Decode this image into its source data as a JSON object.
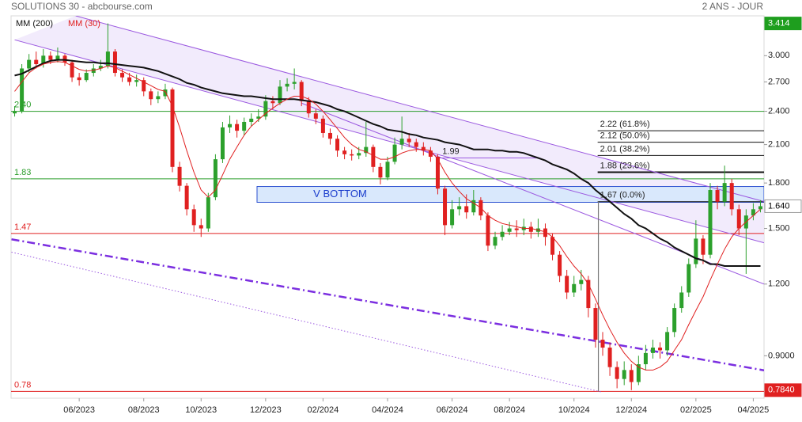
{
  "chart_data": {
    "type": "candlestick",
    "title": "SOLUTIONS 30 - abcbourse.com",
    "period": "2 ANS - JOUR",
    "log_scale": true,
    "ylim": [
      0.759,
      3.52
    ],
    "yticks": [
      {
        "value": 3.0,
        "label": "3.000"
      },
      {
        "value": 2.7,
        "label": "2.700"
      },
      {
        "value": 2.4,
        "label": "2.400"
      },
      {
        "value": 2.1,
        "label": "2.100"
      },
      {
        "value": 1.8,
        "label": "1.800"
      },
      {
        "value": 1.5,
        "label": "1.500"
      },
      {
        "value": 1.2,
        "label": "1.200"
      },
      {
        "value": 0.9,
        "label": "0.9000"
      }
    ],
    "categories": [
      null,
      null,
      null,
      null,
      null,
      null,
      null,
      null,
      null,
      "06/2023",
      null,
      null,
      null,
      null,
      null,
      null,
      null,
      null,
      "08/2023",
      null,
      null,
      null,
      null,
      null,
      null,
      null,
      "10/2023",
      null,
      null,
      null,
      null,
      null,
      null,
      null,
      null,
      "12/2023",
      null,
      null,
      null,
      null,
      null,
      null,
      null,
      "02/2024",
      null,
      null,
      null,
      null,
      null,
      null,
      null,
      null,
      "04/2024",
      null,
      null,
      null,
      null,
      null,
      null,
      null,
      null,
      "06/2024",
      null,
      null,
      null,
      null,
      null,
      null,
      null,
      "08/2024",
      null,
      null,
      null,
      null,
      null,
      null,
      null,
      null,
      "10/2024",
      null,
      null,
      null,
      null,
      null,
      null,
      null,
      "12/2024",
      null,
      null,
      null,
      null,
      null,
      null,
      null,
      null,
      "02/2025",
      null,
      null,
      null,
      null,
      null,
      null,
      null,
      "04/2025",
      null
    ],
    "candles": {
      "up_color": "#2ca02c",
      "down_color": "#e02020",
      "open": [
        2.38,
        2.4,
        2.85,
        2.95,
        2.9,
        3.0,
        2.95,
        3.0,
        2.92,
        2.75,
        2.72,
        2.8,
        2.85,
        2.88,
        3.05,
        2.8,
        2.75,
        2.7,
        2.72,
        2.6,
        2.52,
        2.55,
        2.62,
        1.92,
        1.78,
        1.62,
        1.52,
        1.5,
        1.7,
        1.98,
        2.25,
        2.28,
        2.22,
        2.3,
        2.33,
        2.35,
        2.5,
        2.48,
        2.65,
        2.68,
        2.7,
        2.5,
        2.38,
        2.33,
        2.2,
        2.15,
        2.05,
        2.02,
        2.01,
        2.03,
        2.08,
        1.92,
        1.84,
        1.96,
        2.1,
        2.15,
        2.12,
        2.08,
        2.05,
        2.0,
        1.76,
        1.52,
        1.62,
        1.64,
        1.6,
        1.68,
        1.58,
        1.4,
        1.45,
        1.48,
        1.5,
        1.49,
        1.51,
        1.48,
        1.5,
        1.45,
        1.35,
        1.24,
        1.16,
        1.2,
        1.22,
        1.09,
        0.96,
        0.93,
        0.86,
        0.82,
        0.85,
        0.81,
        0.87,
        0.91,
        0.93,
        0.92,
        0.99,
        1.09,
        1.16,
        1.3,
        1.44,
        1.35,
        1.75,
        1.67,
        1.8,
        1.62,
        1.5,
        1.58,
        1.62
      ],
      "high": [
        2.45,
        2.9,
        3.02,
        3.05,
        3.08,
        3.05,
        3.1,
        3.02,
        2.95,
        2.8,
        2.84,
        2.9,
        2.95,
        3.414,
        3.08,
        2.84,
        2.8,
        2.78,
        2.75,
        2.63,
        2.6,
        2.68,
        2.64,
        1.96,
        1.8,
        1.65,
        1.56,
        1.73,
        2.02,
        2.3,
        2.36,
        2.32,
        2.34,
        2.38,
        2.42,
        2.56,
        2.55,
        2.72,
        2.74,
        2.85,
        2.72,
        2.54,
        2.42,
        2.36,
        2.24,
        2.18,
        2.08,
        2.06,
        2.08,
        2.3,
        2.1,
        1.95,
        2.0,
        2.16,
        2.35,
        2.2,
        2.15,
        2.12,
        2.08,
        2.02,
        1.78,
        1.68,
        1.7,
        1.72,
        1.75,
        1.7,
        1.6,
        1.48,
        1.52,
        1.54,
        1.55,
        1.56,
        1.54,
        1.56,
        1.53,
        1.47,
        1.37,
        1.27,
        1.24,
        1.27,
        1.24,
        1.11,
        0.99,
        0.95,
        0.88,
        0.88,
        0.87,
        0.9,
        0.94,
        0.96,
        0.95,
        1.01,
        1.11,
        1.19,
        1.33,
        1.55,
        1.46,
        1.8,
        1.78,
        1.93,
        1.83,
        1.65,
        1.62,
        1.66,
        1.68
      ],
      "low": [
        2.35,
        2.38,
        2.8,
        2.85,
        2.86,
        2.9,
        2.92,
        2.88,
        2.7,
        2.66,
        2.7,
        2.76,
        2.82,
        2.85,
        2.76,
        2.7,
        2.66,
        2.65,
        2.55,
        2.46,
        2.48,
        2.52,
        1.88,
        1.74,
        1.58,
        1.48,
        1.45,
        1.48,
        1.68,
        1.95,
        2.2,
        2.16,
        2.18,
        2.26,
        2.3,
        2.32,
        2.42,
        2.46,
        2.6,
        2.62,
        2.45,
        2.34,
        2.28,
        2.16,
        2.1,
        2.0,
        1.98,
        1.97,
        1.98,
        2.0,
        1.88,
        1.79,
        1.82,
        1.94,
        2.06,
        2.08,
        2.04,
        2.01,
        1.96,
        1.72,
        1.46,
        1.5,
        1.58,
        1.56,
        1.58,
        1.55,
        1.37,
        1.38,
        1.43,
        1.46,
        1.45,
        1.46,
        1.44,
        1.45,
        1.4,
        1.32,
        1.21,
        1.13,
        1.14,
        1.17,
        1.05,
        0.93,
        0.9,
        0.83,
        0.79,
        0.8,
        0.784,
        0.8,
        0.85,
        0.89,
        0.89,
        0.9,
        0.97,
        1.07,
        1.14,
        1.28,
        1.3,
        1.33,
        1.62,
        1.64,
        1.58,
        1.46,
        1.25,
        1.55,
        1.6
      ],
      "close": [
        2.4,
        2.85,
        2.95,
        2.9,
        3.0,
        2.95,
        3.0,
        2.92,
        2.75,
        2.72,
        2.8,
        2.85,
        2.88,
        3.05,
        2.8,
        2.75,
        2.7,
        2.72,
        2.6,
        2.52,
        2.55,
        2.62,
        1.92,
        1.78,
        1.62,
        1.52,
        1.5,
        1.7,
        1.98,
        2.25,
        2.28,
        2.22,
        2.3,
        2.33,
        2.35,
        2.5,
        2.48,
        2.65,
        2.68,
        2.7,
        2.5,
        2.38,
        2.33,
        2.2,
        2.15,
        2.05,
        2.02,
        2.01,
        2.03,
        2.08,
        1.92,
        1.84,
        1.96,
        2.1,
        2.15,
        2.12,
        2.08,
        2.05,
        2.0,
        1.76,
        1.52,
        1.62,
        1.64,
        1.6,
        1.68,
        1.58,
        1.4,
        1.45,
        1.48,
        1.5,
        1.49,
        1.51,
        1.48,
        1.5,
        1.45,
        1.35,
        1.24,
        1.16,
        1.2,
        1.22,
        1.09,
        0.96,
        0.93,
        0.86,
        0.82,
        0.85,
        0.81,
        0.87,
        0.91,
        0.93,
        0.92,
        0.99,
        1.09,
        1.16,
        1.3,
        1.44,
        1.35,
        1.75,
        1.67,
        1.8,
        1.62,
        1.5,
        1.58,
        1.62,
        1.64
      ]
    },
    "series": [
      {
        "name": "MM (200)",
        "color": "#111111",
        "width": 2,
        "values": [
          2.77,
          2.79,
          2.83,
          2.87,
          2.91,
          2.94,
          2.95,
          2.95,
          2.94,
          2.93,
          2.92,
          2.92,
          2.91,
          2.91,
          2.9,
          2.89,
          2.88,
          2.87,
          2.86,
          2.84,
          2.82,
          2.79,
          2.76,
          2.73,
          2.69,
          2.67,
          2.64,
          2.62,
          2.6,
          2.58,
          2.57,
          2.56,
          2.55,
          2.55,
          2.54,
          2.53,
          2.52,
          2.52,
          2.52,
          2.52,
          2.51,
          2.5,
          2.49,
          2.47,
          2.45,
          2.42,
          2.4,
          2.37,
          2.34,
          2.31,
          2.28,
          2.26,
          2.23,
          2.22,
          2.21,
          2.19,
          2.18,
          2.16,
          2.15,
          2.14,
          2.12,
          2.11,
          2.1,
          2.08,
          2.06,
          2.06,
          2.06,
          2.05,
          2.05,
          2.04,
          2.04,
          2.03,
          2.01,
          1.99,
          1.97,
          1.94,
          1.92,
          1.9,
          1.87,
          1.83,
          1.8,
          1.75,
          1.71,
          1.67,
          1.63,
          1.59,
          1.56,
          1.52,
          1.5,
          1.47,
          1.44,
          1.42,
          1.39,
          1.37,
          1.35,
          1.33,
          1.32,
          1.3,
          1.3,
          1.29,
          1.29,
          1.29,
          1.29,
          1.29,
          1.29
        ]
      },
      {
        "name": "MM (30)",
        "color": "#e02020",
        "width": 1,
        "values": [
          2.6,
          2.7,
          2.8,
          2.86,
          2.9,
          2.92,
          2.93,
          2.92,
          2.88,
          2.84,
          2.82,
          2.83,
          2.85,
          2.88,
          2.86,
          2.82,
          2.78,
          2.74,
          2.7,
          2.66,
          2.62,
          2.6,
          2.45,
          2.25,
          2.05,
          1.88,
          1.75,
          1.7,
          1.75,
          1.86,
          1.98,
          2.08,
          2.18,
          2.26,
          2.32,
          2.38,
          2.43,
          2.48,
          2.52,
          2.55,
          2.55,
          2.52,
          2.47,
          2.4,
          2.32,
          2.24,
          2.16,
          2.1,
          2.06,
          2.04,
          2.01,
          1.98,
          1.98,
          2.0,
          2.03,
          2.05,
          2.06,
          2.06,
          2.05,
          1.98,
          1.88,
          1.8,
          1.74,
          1.69,
          1.66,
          1.63,
          1.58,
          1.55,
          1.53,
          1.52,
          1.51,
          1.5,
          1.5,
          1.49,
          1.48,
          1.45,
          1.4,
          1.34,
          1.29,
          1.25,
          1.2,
          1.13,
          1.06,
          1.0,
          0.95,
          0.91,
          0.88,
          0.86,
          0.85,
          0.85,
          0.86,
          0.88,
          0.92,
          0.96,
          1.02,
          1.08,
          1.14,
          1.22,
          1.3,
          1.38,
          1.45,
          1.5,
          1.54,
          1.58,
          1.62
        ]
      }
    ],
    "hlines": [
      {
        "value": 2.4,
        "label": "2.40",
        "color": "#2a9d2a"
      },
      {
        "value": 1.83,
        "label": "1.83",
        "color": "#2a9d2a"
      },
      {
        "value": 1.47,
        "label": "1.47",
        "color": "#e02020"
      },
      {
        "value": 0.78,
        "label": "0.78",
        "color": "#e02020"
      }
    ],
    "fibonacci": {
      "x": [
        81.3,
        104.5
      ],
      "levels": [
        {
          "value": 2.22,
          "label": "2.22  (61.8%)",
          "width": 1
        },
        {
          "value": 2.12,
          "label": "2.12  (50.0%)",
          "width": 1
        },
        {
          "value": 2.01,
          "label": "2.01  (38.2%)",
          "width": 1
        },
        {
          "value": 1.88,
          "label": "1.88  (23.6%)",
          "width": 2
        },
        {
          "value": 1.67,
          "label": "1.67  (0.0%)",
          "width": 1
        }
      ]
    },
    "zone": {
      "label": "V BOTTOM",
      "x": [
        33.8,
        104.5
      ],
      "top": 1.775,
      "bottom": 1.666
    },
    "level_segment": {
      "value": 1.99,
      "label": "1.99",
      "x": [
        59.2,
        73.0
      ]
    },
    "trendlines": [
      {
        "style": "solid",
        "color": "#9b59e0",
        "width": 1,
        "points": [
          [
            8.5,
            3.52
          ],
          [
            104.5,
            1.671
          ]
        ]
      },
      {
        "style": "solid",
        "color": "#9b59e0",
        "width": 1,
        "points": [
          [
            0,
            3.197
          ],
          [
            104.5,
            1.416
          ]
        ]
      },
      {
        "style": "solid",
        "color": "#9b59e0",
        "width": 1,
        "points": [
          [
            40,
            2.48
          ],
          [
            104.5,
            1.2
          ]
        ]
      },
      {
        "style": "dashdot",
        "color": "#7b2ee0",
        "width": 2.5,
        "points": [
          [
            -0.44,
            1.436
          ],
          [
            104.5,
            0.849
          ]
        ]
      },
      {
        "style": "dotted",
        "color": "#9b59e0",
        "width": 1,
        "points": [
          [
            -0.44,
            1.364
          ],
          [
            81.9,
            0.778
          ]
        ]
      },
      {
        "style": "solid",
        "color": "#777777",
        "width": 1.2,
        "points": [
          [
            81.4,
            1.67
          ],
          [
            81.4,
            0.78
          ]
        ]
      }
    ],
    "price_markers": [
      {
        "value": 3.414,
        "label": "3.414",
        "color": "#1e9e1e"
      },
      {
        "value": 1.64,
        "label": "1.640",
        "color": "#ffffff"
      },
      {
        "value": 0.784,
        "label": "0.7840",
        "color": "#e02020"
      }
    ]
  }
}
